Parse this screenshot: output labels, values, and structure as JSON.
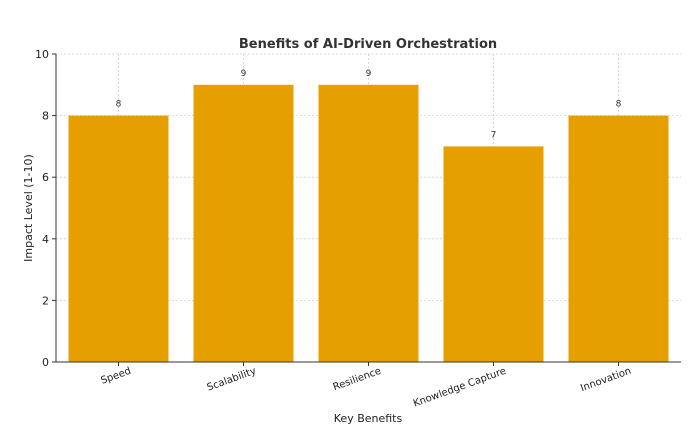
{
  "chart_data": {
    "type": "bar",
    "title": "Benefits of AI-Driven Orchestration",
    "xlabel": "Key Benefits",
    "ylabel": "Impact Level (1-10)",
    "categories": [
      "Speed",
      "Scalability",
      "Resilience",
      "Knowledge Capture",
      "Innovation"
    ],
    "values": [
      8,
      9,
      9,
      7,
      8
    ],
    "data_labels": [
      "8",
      "9",
      "9",
      "7",
      "8"
    ],
    "ylim": [
      0,
      10
    ],
    "yticks": [
      0,
      2,
      4,
      6,
      8,
      10
    ],
    "grid": true,
    "bar_color": "#E5A000"
  }
}
